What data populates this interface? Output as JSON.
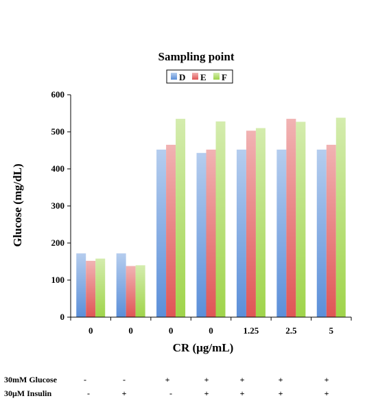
{
  "chart_data": {
    "type": "bar",
    "title": "Sampling point",
    "xlabel": "CR (µg/mL)",
    "ylabel": "Glucose (mg/dL)",
    "ylim": [
      0,
      600
    ],
    "yticks": [
      "0",
      "100",
      "200",
      "300",
      "400",
      "500",
      "600"
    ],
    "grid": false,
    "legend_position": "top-center",
    "categories": [
      "0",
      "0",
      "0",
      "0",
      "1.25",
      "2.5",
      "5"
    ],
    "series": [
      {
        "name": "D",
        "color": "#5b8fd9",
        "values": [
          172,
          172,
          452,
          443,
          452,
          452,
          452
        ]
      },
      {
        "name": "E",
        "color": "#e05555",
        "values": [
          152,
          138,
          465,
          452,
          503,
          535,
          465
        ]
      },
      {
        "name": "F",
        "color": "#9fd44a",
        "values": [
          158,
          140,
          535,
          528,
          510,
          527,
          538
        ]
      }
    ]
  },
  "conditions": [
    {
      "label": "30mM Glucose",
      "values": [
        "-",
        "-",
        "+",
        "+",
        "+",
        "+",
        "+"
      ]
    },
    {
      "label": "30μM  Insulin",
      "values": [
        "-",
        "+",
        "-",
        "+",
        "+",
        "+",
        "+"
      ]
    }
  ]
}
